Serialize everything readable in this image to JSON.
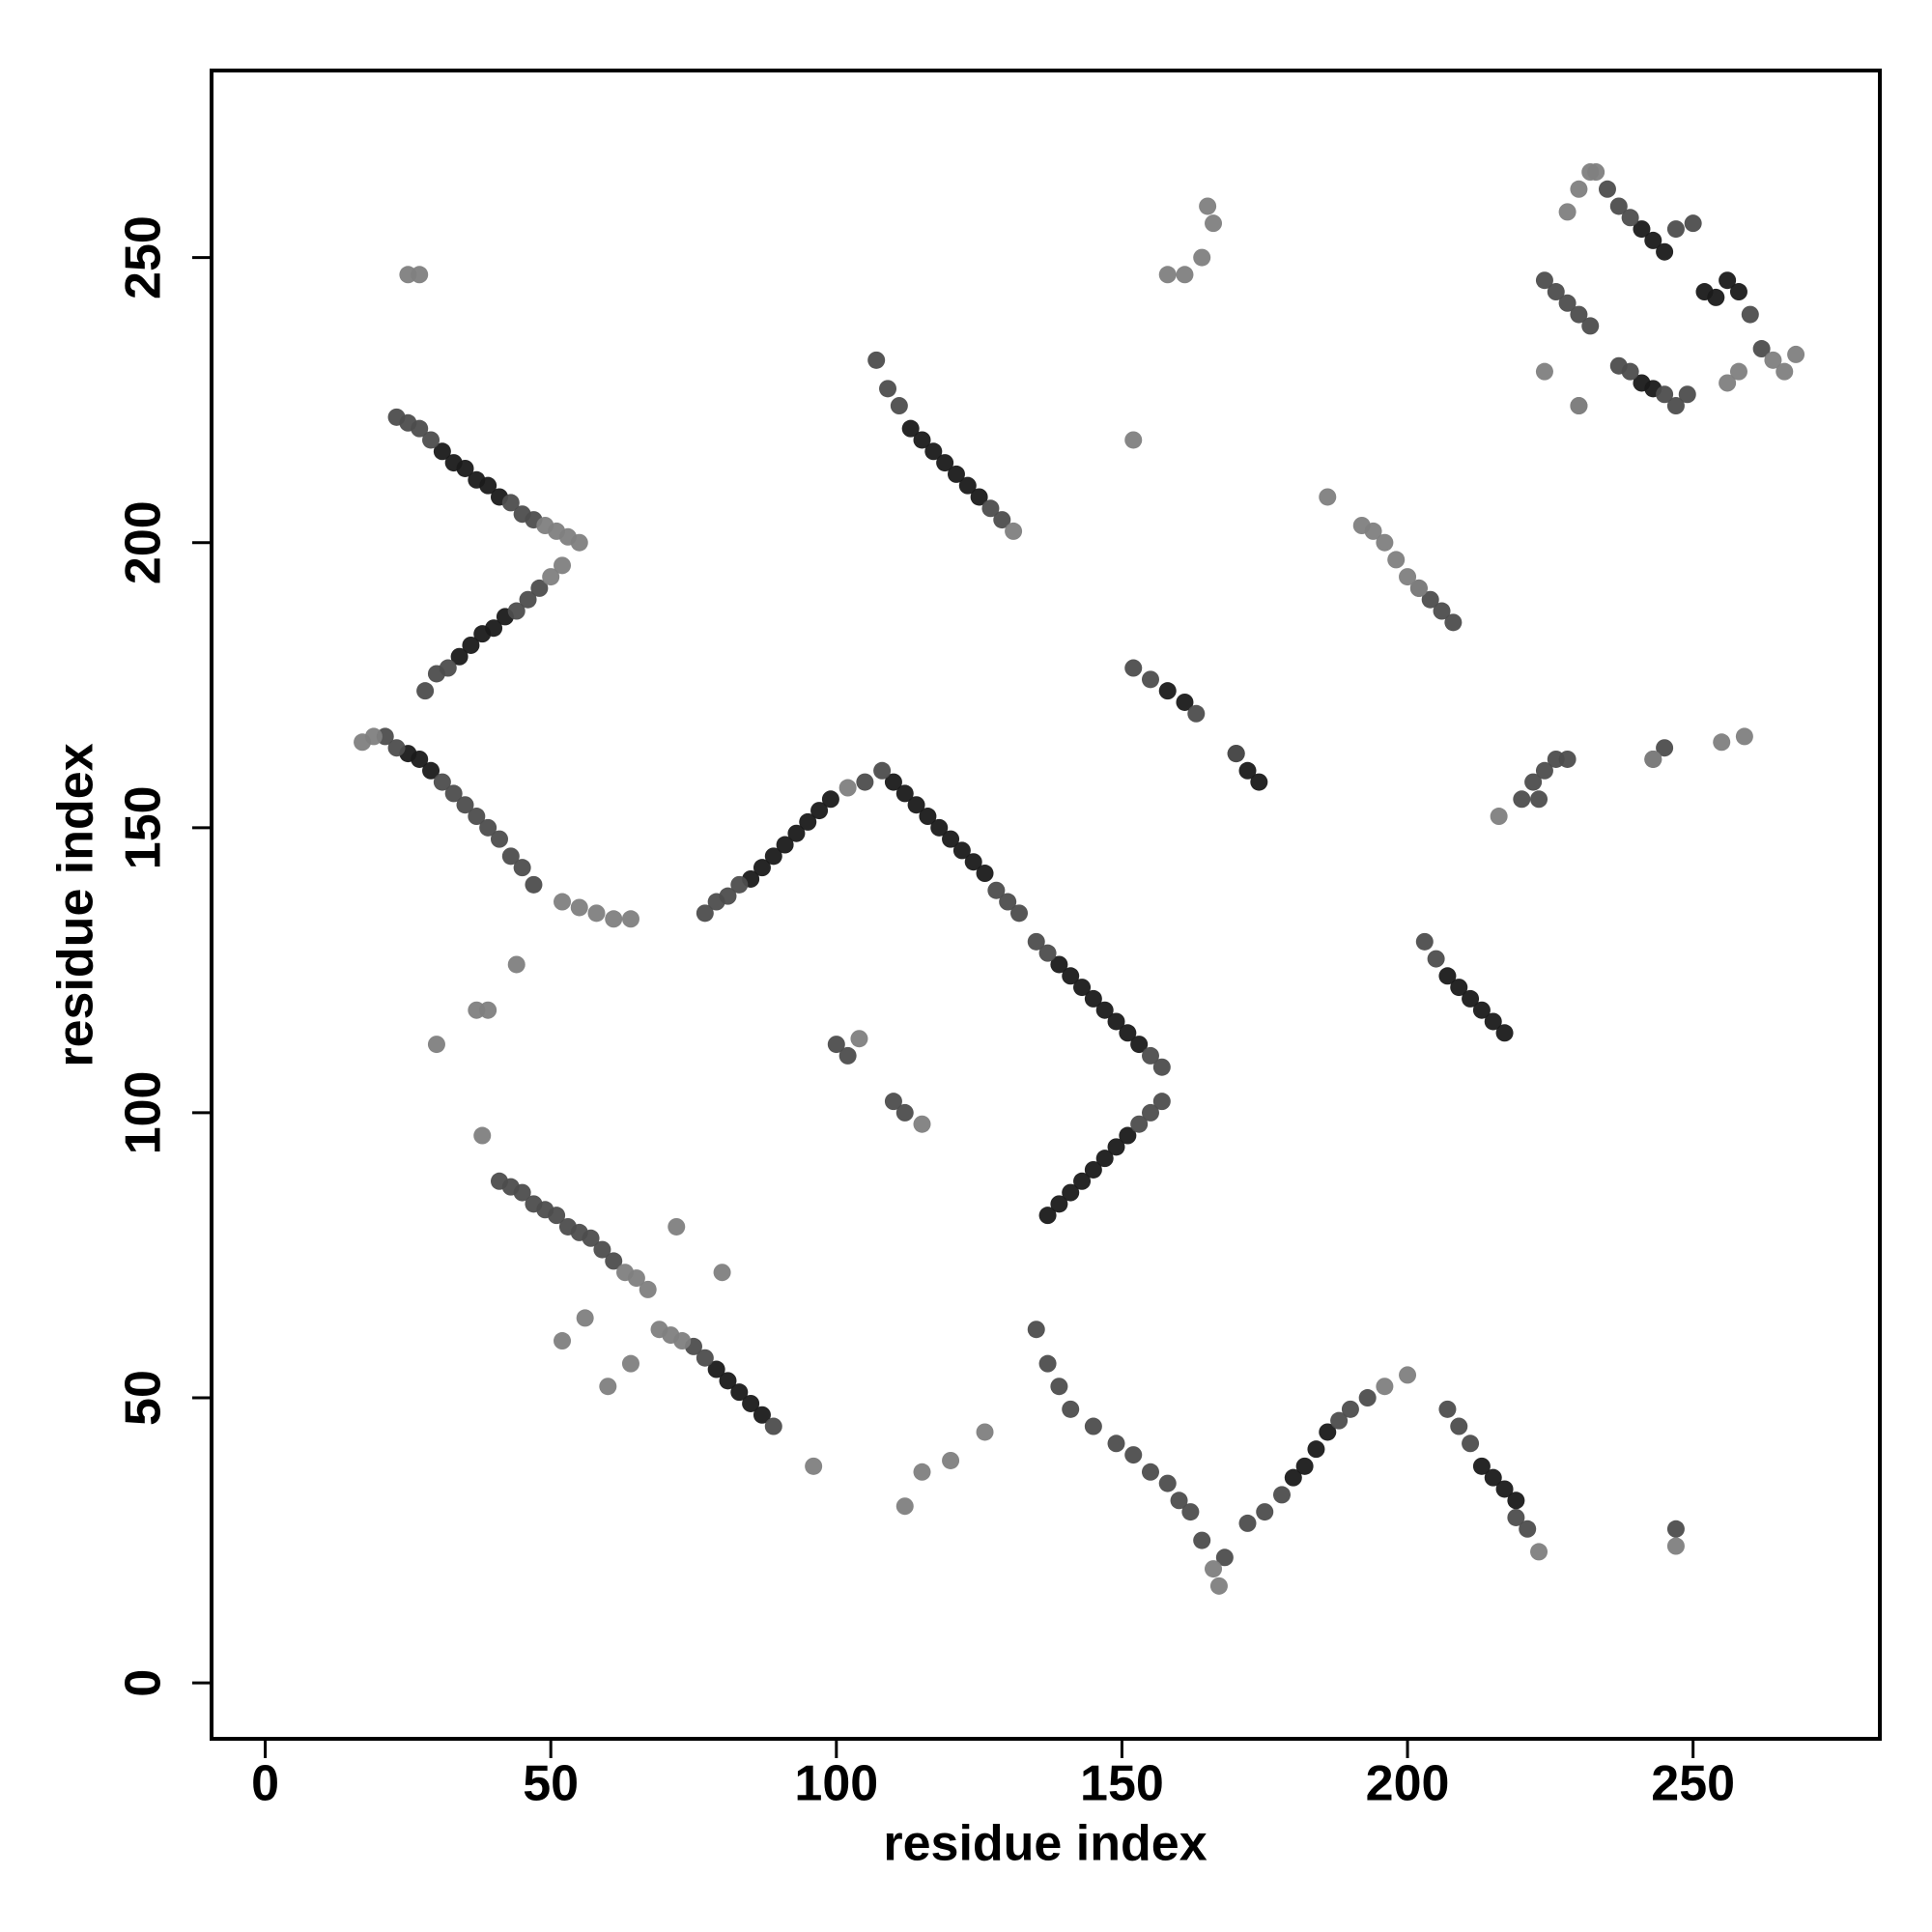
{
  "chart_data": {
    "type": "scatter",
    "xlabel": "residue index",
    "ylabel": "residue index",
    "xlim": [
      -9.4,
      282.7
    ],
    "ylim": [
      -9.8,
      282.8
    ],
    "xticks": [
      0,
      50,
      100,
      150,
      200,
      250
    ],
    "yticks": [
      0,
      50,
      100,
      150,
      200,
      250
    ],
    "series": [
      {
        "color": "#1a1a1a",
        "x": [
          31,
          33,
          35,
          37,
          39,
          41,
          34,
          36,
          38,
          40,
          42,
          25,
          27,
          29,
          85,
          87,
          89,
          91,
          93,
          95,
          97,
          99,
          110,
          112,
          114,
          116,
          118,
          120,
          122,
          124,
          126,
          139,
          141,
          143,
          145,
          147,
          149,
          151,
          153,
          137,
          139,
          141,
          143,
          145,
          147,
          149,
          151,
          79,
          81,
          83,
          85,
          87,
          113,
          115,
          117,
          119,
          121,
          123,
          125,
          158,
          161,
          170,
          172,
          174,
          180,
          182,
          184,
          186,
          207,
          209,
          211,
          213,
          215,
          217,
          213,
          215,
          217,
          219,
          241,
          243,
          245,
          252,
          254,
          256,
          258,
          241,
          243
        ],
        "y": [
          216,
          214,
          213,
          211,
          210,
          208,
          180,
          182,
          184,
          185,
          187,
          163,
          162,
          160,
          141,
          143,
          145,
          147,
          149,
          151,
          153,
          155,
          158,
          156,
          154,
          152,
          150,
          148,
          146,
          144,
          142,
          126,
          124,
          122,
          120,
          118,
          116,
          114,
          112,
          82,
          84,
          86,
          88,
          90,
          92,
          94,
          96,
          55,
          53,
          51,
          49,
          47,
          220,
          218,
          216,
          214,
          212,
          210,
          208,
          174,
          172,
          163,
          160,
          158,
          36,
          38,
          41,
          44,
          124,
          122,
          120,
          118,
          116,
          114,
          38,
          36,
          34,
          32,
          255,
          253,
          251,
          244,
          243,
          246,
          244,
          228,
          227
        ]
      },
      {
        "color": "#4d4d4d",
        "x": [
          23,
          25,
          27,
          29,
          43,
          45,
          47,
          28,
          30,
          32,
          44,
          46,
          48,
          21,
          23,
          31,
          33,
          35,
          37,
          39,
          41,
          43,
          45,
          47,
          41,
          43,
          45,
          47,
          49,
          51,
          53,
          55,
          57,
          59,
          61,
          75,
          77,
          89,
          77,
          79,
          81,
          83,
          105,
          108,
          128,
          130,
          132,
          135,
          137,
          155,
          157,
          153,
          155,
          157,
          100,
          102,
          110,
          112,
          135,
          137,
          139,
          141,
          145,
          149,
          152,
          155,
          158,
          160,
          162,
          164,
          168,
          172,
          175,
          178,
          188,
          190,
          193,
          203,
          205,
          207,
          209,
          211,
          219,
          221,
          223,
          107,
          109,
          111,
          127,
          129,
          152,
          155,
          163,
          170,
          202,
          204,
          206,
          208,
          220,
          222,
          224,
          226,
          228,
          243,
          245,
          224,
          226,
          228,
          230,
          232,
          235,
          237,
          239,
          247,
          250,
          260,
          262,
          237,
          239,
          245,
          247,
          249,
          247
        ],
        "y": [
          222,
          221,
          220,
          218,
          207,
          205,
          204,
          174,
          177,
          178,
          188,
          190,
          192,
          166,
          164,
          158,
          156,
          154,
          152,
          150,
          148,
          145,
          143,
          140,
          88,
          87,
          86,
          84,
          83,
          82,
          80,
          79,
          78,
          76,
          74,
          59,
          57,
          45,
          135,
          137,
          138,
          140,
          158,
          160,
          139,
          137,
          135,
          130,
          128,
          110,
          108,
          98,
          100,
          102,
          112,
          110,
          102,
          100,
          62,
          56,
          52,
          48,
          45,
          42,
          40,
          37,
          35,
          32,
          30,
          25,
          22,
          28,
          30,
          33,
          46,
          48,
          50,
          130,
          127,
          48,
          45,
          42,
          29,
          27,
          155,
          232,
          227,
          224,
          206,
          204,
          178,
          176,
          170,
          163,
          192,
          190,
          188,
          186,
          155,
          158,
          160,
          162,
          162,
          162,
          164,
          246,
          244,
          242,
          240,
          238,
          262,
          259,
          257,
          255,
          256,
          240,
          234,
          231,
          230,
          226,
          224,
          226,
          27
        ]
      },
      {
        "color": "#808080",
        "x": [
          25,
          27,
          49,
          51,
          53,
          55,
          50,
          52,
          17,
          19,
          52,
          55,
          58,
          61,
          64,
          37,
          39,
          30,
          44,
          38,
          63,
          65,
          67,
          69,
          71,
          73,
          72,
          80,
          52,
          60,
          56,
          64,
          96,
          112,
          115,
          120,
          126,
          102,
          104,
          115,
          166,
          167,
          196,
          200,
          223,
          247,
          131,
          158,
          161,
          164,
          166,
          165,
          152,
          186,
          192,
          194,
          196,
          198,
          200,
          202,
          230,
          233,
          216,
          243,
          255,
          259,
          228,
          230,
          232,
          264,
          266,
          268,
          256,
          258,
          224,
          230
        ],
        "y": [
          247,
          247,
          203,
          202,
          201,
          200,
          194,
          196,
          165,
          166,
          137,
          136,
          135,
          134,
          134,
          118,
          118,
          112,
          126,
          96,
          72,
          71,
          69,
          62,
          61,
          60,
          80,
          72,
          60,
          52,
          64,
          56,
          38,
          31,
          37,
          39,
          44,
          157,
          113,
          98,
          20,
          17,
          52,
          54,
          23,
          24,
          202,
          247,
          247,
          250,
          256,
          259,
          218,
          208,
          203,
          202,
          200,
          197,
          194,
          192,
          262,
          265,
          152,
          162,
          165,
          166,
          258,
          224,
          265,
          232,
          230,
          233,
          228,
          230,
          230,
          224
        ]
      }
    ]
  }
}
